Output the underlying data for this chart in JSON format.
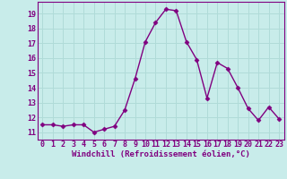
{
  "x": [
    0,
    1,
    2,
    3,
    4,
    5,
    6,
    7,
    8,
    9,
    10,
    11,
    12,
    13,
    14,
    15,
    16,
    17,
    18,
    19,
    20,
    21,
    22,
    23
  ],
  "y": [
    11.5,
    11.5,
    11.4,
    11.5,
    11.5,
    11.0,
    11.2,
    11.4,
    12.5,
    14.6,
    17.1,
    18.4,
    19.3,
    19.2,
    17.1,
    15.9,
    13.3,
    15.7,
    15.3,
    14.0,
    12.6,
    11.8,
    12.7,
    11.9
  ],
  "line_color": "#800080",
  "marker": "D",
  "markersize": 2.5,
  "linewidth": 1.0,
  "bg_color": "#c8ecea",
  "grid_color": "#b0dbd8",
  "xlabel": "Windchill (Refroidissement éolien,°C)",
  "xlabel_fontsize": 6.5,
  "tick_fontsize": 6.0,
  "ylim": [
    10.5,
    19.8
  ],
  "xlim": [
    -0.5,
    23.5
  ],
  "yticks": [
    11,
    12,
    13,
    14,
    15,
    16,
    17,
    18,
    19
  ],
  "xticks": [
    0,
    1,
    2,
    3,
    4,
    5,
    6,
    7,
    8,
    9,
    10,
    11,
    12,
    13,
    14,
    15,
    16,
    17,
    18,
    19,
    20,
    21,
    22,
    23
  ],
  "spine_color": "#800080",
  "label_color": "#800080"
}
